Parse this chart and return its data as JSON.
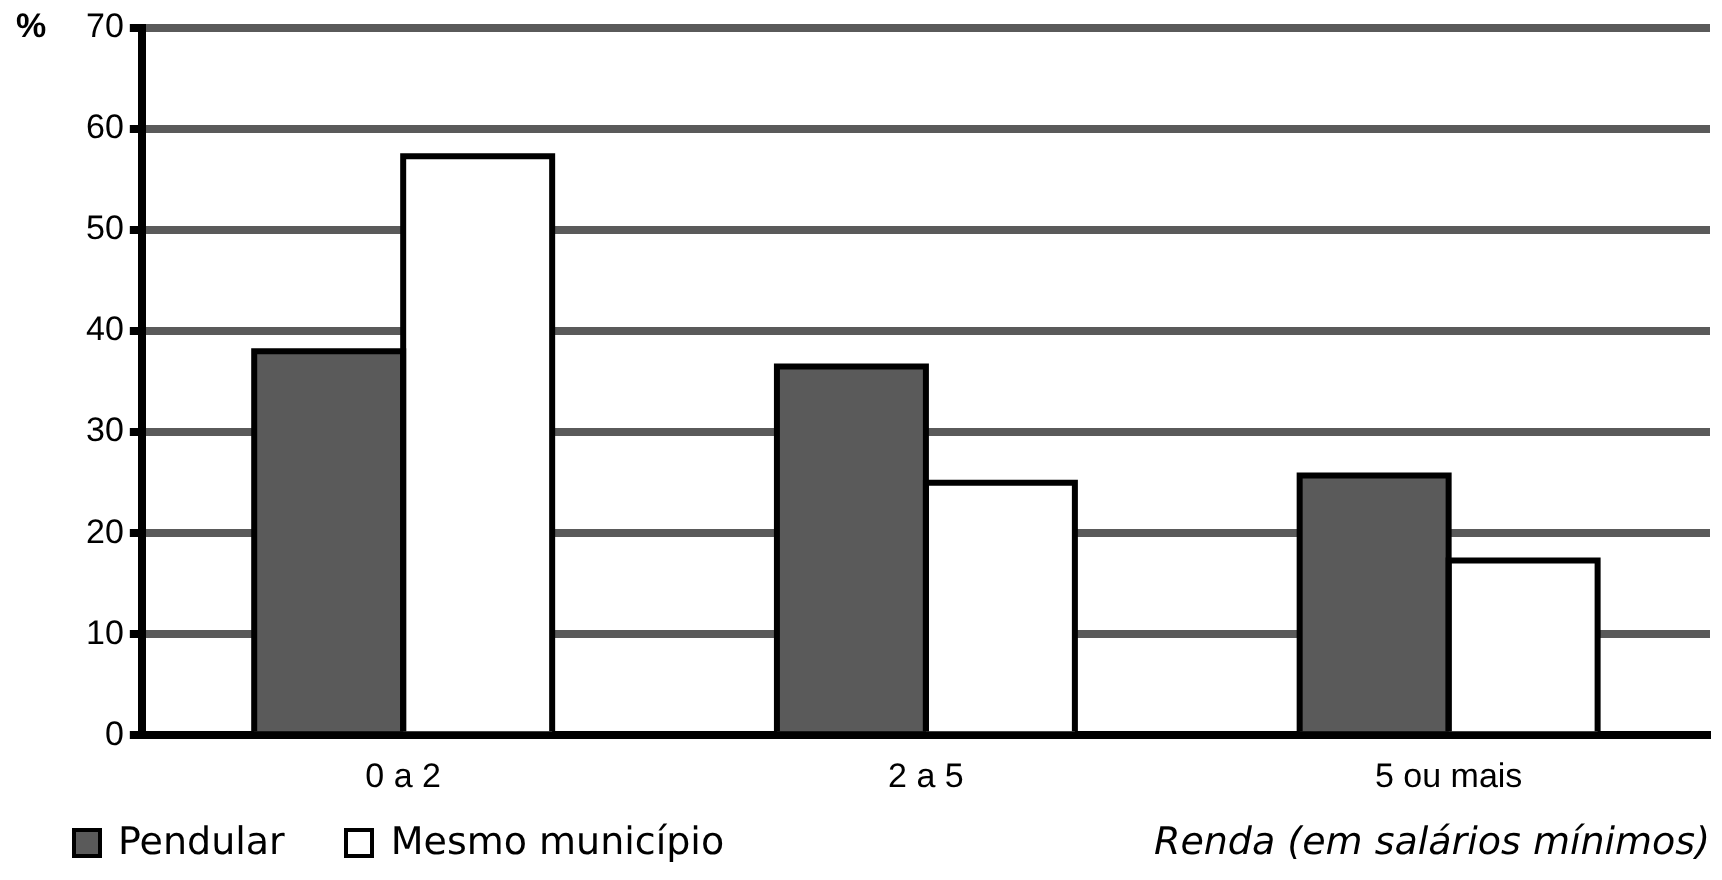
{
  "chart_data": {
    "type": "bar",
    "ylabel": "%",
    "xlabel": "Renda (em salários mínimos)",
    "categories": [
      "0 a 2",
      "2 a 5",
      "5 ou mais"
    ],
    "series": [
      {
        "name": "Pendular",
        "color": "#5a5a5a",
        "values": [
          38,
          36.5,
          25.7
        ]
      },
      {
        "name": "Mesmo município",
        "color": "#ffffff",
        "values": [
          57.3,
          25,
          17.3
        ]
      }
    ],
    "ylim": [
      0,
      70
    ],
    "yticks": [
      0,
      10,
      20,
      30,
      40,
      50,
      60,
      70
    ],
    "grid": "y",
    "legend": "bottom left"
  }
}
